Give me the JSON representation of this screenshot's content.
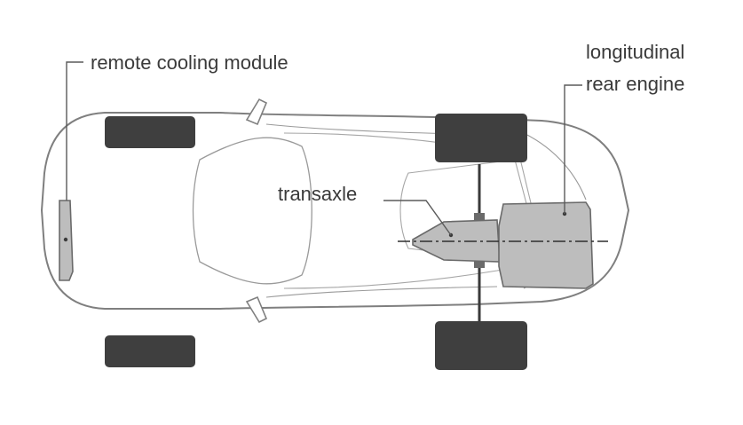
{
  "labels": {
    "cooling": "remote cooling module",
    "engine_line1": "longitudinal",
    "engine_line2": "rear engine",
    "transaxle": "transaxle"
  },
  "colors": {
    "outline": "#7f7f7f",
    "tire": "#3f3f3f",
    "component_fill": "#bdbdbd",
    "component_stroke": "#6a6a6a",
    "axis": "#2f2f2f",
    "label_text": "#3a3a3a"
  }
}
